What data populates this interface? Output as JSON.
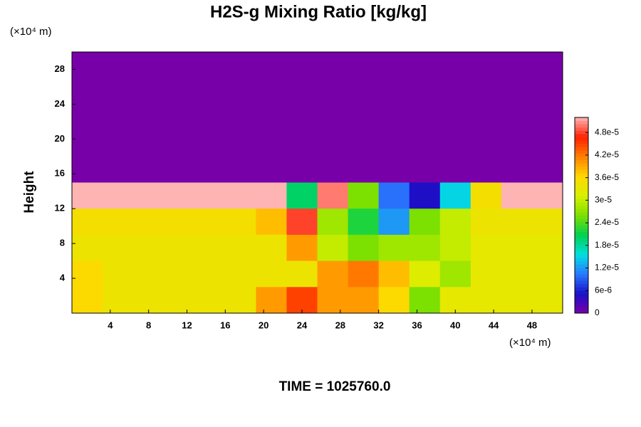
{
  "chart_data": {
    "type": "heatmap",
    "title": "H2S-g Mixing Ratio [kg/kg]",
    "y_label": "Height",
    "x_unit": "(×10⁴ m)",
    "y_unit": "(×10⁴ m)",
    "footer": "TIME = 1025760.0",
    "xlim": [
      0,
      51.2
    ],
    "ylim": [
      0,
      30
    ],
    "xticks": [
      4,
      8,
      12,
      16,
      20,
      24,
      28,
      32,
      36,
      40,
      44,
      48
    ],
    "yticks": [
      4,
      8,
      12,
      16,
      20,
      24,
      28
    ],
    "z": [
      [
        0,
        0,
        0,
        0,
        0,
        0,
        0,
        0,
        0,
        0,
        0,
        0,
        0,
        0,
        0,
        0
      ],
      [
        0,
        0,
        0,
        0,
        0,
        0,
        0,
        0,
        0,
        0,
        0,
        0,
        0,
        0,
        0,
        0
      ],
      [
        0,
        0,
        0,
        0,
        0,
        0,
        0,
        0,
        0,
        0,
        0,
        0,
        0,
        0,
        0,
        0
      ],
      [
        0,
        0,
        0,
        0,
        0,
        0,
        0,
        0,
        0,
        0,
        0,
        0,
        0,
        0,
        0,
        0
      ],
      [
        0,
        0,
        0,
        0,
        0,
        0,
        0,
        0,
        0,
        0,
        0,
        0,
        0,
        0,
        0,
        0
      ],
      [
        5.2e-05,
        5.2e-05,
        5.2e-05,
        5.2e-05,
        5.2e-05,
        5.2e-05,
        5.2e-05,
        2e-05,
        5e-05,
        2.6e-05,
        1e-05,
        5e-06,
        1.5e-05,
        3.5e-05,
        5.2e-05,
        5.2e-05
      ],
      [
        3.5e-05,
        3.5e-05,
        3.5e-05,
        3.5e-05,
        3.5e-05,
        3.5e-05,
        3.8e-05,
        4.8e-05,
        2.8e-05,
        2.2e-05,
        1.2e-05,
        2.6e-05,
        3e-05,
        3.4e-05,
        3.4e-05,
        3.4e-05
      ],
      [
        3.4e-05,
        3.4e-05,
        3.4e-05,
        3.4e-05,
        3.4e-05,
        3.4e-05,
        3.4e-05,
        4e-05,
        3e-05,
        2.6e-05,
        2.8e-05,
        2.8e-05,
        3e-05,
        3.3e-05,
        3.3e-05,
        3.3e-05
      ],
      [
        3.6e-05,
        3.4e-05,
        3.4e-05,
        3.4e-05,
        3.4e-05,
        3.4e-05,
        3.4e-05,
        3.4e-05,
        4e-05,
        4.2e-05,
        3.8e-05,
        3.2e-05,
        2.8e-05,
        3.3e-05,
        3.3e-05,
        3.3e-05
      ],
      [
        3.6e-05,
        3.4e-05,
        3.4e-05,
        3.4e-05,
        3.4e-05,
        3.4e-05,
        4e-05,
        4.5e-05,
        4e-05,
        4e-05,
        3.6e-05,
        2.6e-05,
        3.3e-05,
        3.3e-05,
        3.3e-05,
        3.3e-05
      ]
    ],
    "colorbar": {
      "lim": [
        0,
        5.2e-05
      ],
      "ticks": [
        0,
        {
          "value": 6e-06,
          "label": "6e-6"
        },
        {
          "value": 1.2e-05,
          "label": "1.2e-5"
        },
        {
          "value": 1.8e-05,
          "label": "1.8e-5"
        },
        {
          "value": 2.4e-05,
          "label": "2.4e-5"
        },
        {
          "value": 3e-05,
          "label": "3e-5"
        },
        {
          "value": 3.6e-05,
          "label": "3.6e-5"
        },
        {
          "value": 4.2e-05,
          "label": "4.2e-5"
        },
        {
          "value": 4.8e-05,
          "label": "4.8e-5"
        }
      ],
      "colors": [
        "#7800a8",
        "#1a10c8",
        "#2a78ff",
        "#00e0e0",
        "#00d050",
        "#7ce000",
        "#d8f000",
        "#ffd800",
        "#ff8000",
        "#ff2000",
        "#ffb4b4"
      ]
    }
  }
}
